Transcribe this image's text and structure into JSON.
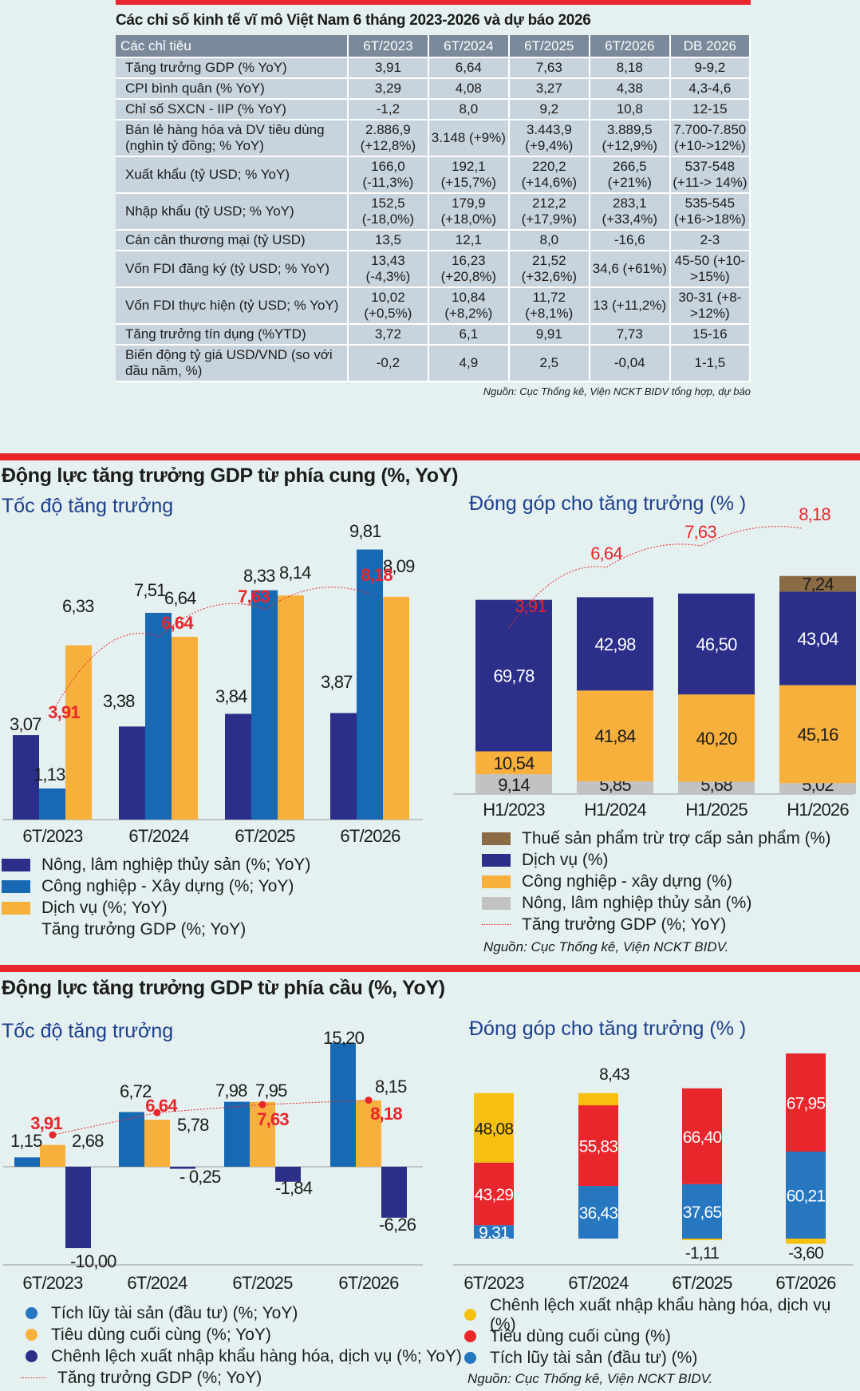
{
  "table": {
    "title": "Các chỉ số kinh tế vĩ mô Việt Nam 6 tháng 2023-2026 và dự báo 2026",
    "headers": [
      "Các chỉ tiêu",
      "6T/2023",
      "6T/2024",
      "6T/2025",
      "6T/2026",
      "DB 2026"
    ],
    "rows": [
      [
        "Tăng trưởng GDP (% YoY)",
        "3,91",
        "6,64",
        "7,63",
        "8,18",
        "9-9,2"
      ],
      [
        "CPI bình quân (% YoY)",
        "3,29",
        "4,08",
        "3,27",
        "4,38",
        "4,3-4,6"
      ],
      [
        "Chỉ số SXCN - IIP (% YoY)",
        "-1,2",
        "8,0",
        "9,2",
        "10,8",
        "12-15"
      ],
      [
        "Bán lẻ hàng hóa và DV tiêu dùng (nghìn tỷ đồng;  % YoY)",
        "2.886,9 (+12,8%)",
        "3.148 (+9%)",
        "3.443,9 (+9,4%)",
        "3.889,5 (+12,9%)",
        "7.700-7.850 (+10->12%)"
      ],
      [
        "Xuất khẩu (tỷ USD;  % YoY)",
        "166,0 (-11,3%)",
        "192,1 (+15,7%)",
        "220,2 (+14,6%)",
        "266,5 (+21%)",
        "537-548 (+11-> 14%)"
      ],
      [
        "Nhập khẩu (tỷ USD; % YoY)",
        "152,5 (-18,0%)",
        "179,9 (+18,0%)",
        "212,2 (+17,9%)",
        "283,1 (+33,4%)",
        "535-545 (+16->18%)"
      ],
      [
        "Cán cân thương mại (tỷ USD)",
        "13,5",
        "12,1",
        "8,0",
        "-16,6",
        "2-3"
      ],
      [
        "Vốn FDI đăng ký (tỷ USD; % YoY)",
        "13,43 (-4,3%)",
        "16,23 (+20,8%)",
        "21,52 (+32,6%)",
        "34,6 (+61%)",
        "45-50 (+10->15%)"
      ],
      [
        "Vốn FDI thực hiện (tỷ USD; % YoY)",
        "10,02 (+0,5%)",
        "10,84 (+8,2%)",
        "11,72 (+8,1%)",
        "13 (+11,2%)",
        "30-31 (+8->12%)"
      ],
      [
        "Tăng trưởng tín dụng (%YTD)",
        "3,72",
        "6,1",
        "9,91",
        "7,73",
        "15-16"
      ],
      [
        "Biến động tỷ giá USD/VND (so với đầu năm, %)",
        "-0,2",
        "4,9",
        "2,5",
        "-0,04",
        "1-1,5"
      ]
    ],
    "source": "Nguồn: Cục Thống kê, Viện NCKT BIDV tổng hợp, dự báo"
  },
  "supply": {
    "title": "Động lực tăng trưởng GDP từ phía cung (%, YoY)",
    "left_title": "Tốc độ tăng trưởng",
    "right_title": "Đóng góp cho tăng trưởng (% )",
    "left_legend": [
      "Nông, lâm nghiệp thủy sản (%; YoY)",
      "Công nghiệp - Xây dựng (%; YoY)",
      "Dịch vụ (%; YoY)",
      "Tăng trưởng GDP (%; YoY)"
    ],
    "right_legend": [
      "Thuế sản phẩm trừ trợ cấp sản phẩm (%)",
      "Dịch vụ (%)",
      "Công nghiệp - xây dựng (%)",
      "Nông, lâm nghiệp thủy sản (%)",
      "Tăng trưởng GDP (%; YoY)"
    ],
    "source": "Nguồn: Cục Thống kê, Viện NCKT BIDV."
  },
  "demand": {
    "title": "Động lực tăng trưởng GDP từ phía cầu (%, YoY)",
    "left_title": "Tốc độ tăng trưởng",
    "right_title": "Đóng góp cho tăng trưởng (% )",
    "left_legend": [
      "Tích lũy tài sản (đầu tư) (%; YoY)",
      "Tiêu dùng cuối cùng (%; YoY)",
      "Chênh lệch xuất nhập khẩu hàng hóa, dịch vụ (%; YoY)",
      "Tăng trưởng GDP (%; YoY)"
    ],
    "right_legend": [
      "Chênh lệch xuất nhập khẩu hàng hóa, dịch vụ  (%)",
      "Tiêu dùng cuối cùng (%)",
      "Tích lũy tài sản (đầu tư) (%)"
    ],
    "source": "Nguồn: Cục Thống kê, Viện NCKT BIDV."
  },
  "colors": {
    "navy": "#2b2f8a",
    "blue": "#1769b3",
    "orange": "#f7b03c",
    "gray": "#c2c2c2",
    "brown": "#8b6b45",
    "red": "#e8262c",
    "yellow": "#f8c00e",
    "dot_blue": "#2777c0"
  },
  "chart_data": [
    {
      "type": "bar",
      "title": "Tốc độ tăng trưởng",
      "categories": [
        "6T/2023",
        "6T/2024",
        "6T/2025",
        "6T/2026"
      ],
      "series": [
        {
          "name": "Nông, lâm nghiệp thủy sản (%; YoY)",
          "values": [
            3.07,
            3.38,
            3.84,
            3.87
          ],
          "labels": [
            "3,07",
            "3,38",
            "3,84",
            "3,87"
          ]
        },
        {
          "name": "Công nghiệp - Xây dựng (%; YoY)",
          "values": [
            1.13,
            7.51,
            8.33,
            9.81
          ],
          "labels": [
            "1,13",
            "7,51",
            "8,33",
            "9,81"
          ]
        },
        {
          "name": "Dịch vụ (%; YoY)",
          "values": [
            6.33,
            6.64,
            8.14,
            8.09
          ],
          "labels": [
            "6,33",
            "6,64",
            "8,14",
            "8,09"
          ]
        },
        {
          "name": "Tăng trưởng GDP (%; YoY)",
          "values": [
            3.91,
            6.64,
            7.63,
            8.18
          ],
          "labels": [
            "3,91",
            "6,64",
            "7,63",
            "8,18"
          ],
          "style": "dotted-line"
        }
      ]
    },
    {
      "type": "bar",
      "stacked": true,
      "title": "Đóng góp cho tăng trưởng (% )",
      "categories": [
        "H1/2023",
        "H1/2024",
        "H1/2025",
        "H1/2026"
      ],
      "series": [
        {
          "name": "Nông, lâm nghiệp thủy sản (%)",
          "values": [
            9.14,
            5.85,
            5.68,
            5.02
          ],
          "labels": [
            "9,14",
            "5,85",
            "5,68",
            "5,02"
          ]
        },
        {
          "name": "Công nghiệp - xây dựng (%)",
          "values": [
            10.54,
            41.84,
            40.2,
            45.16
          ],
          "labels": [
            "10,54",
            "41,84",
            "40,20",
            "45,16"
          ]
        },
        {
          "name": "Dịch vụ (%)",
          "values": [
            69.78,
            42.98,
            46.5,
            43.04
          ],
          "labels": [
            "69,78",
            "42,98",
            "46,50",
            "43,04"
          ]
        },
        {
          "name": "Thuế sản phẩm trừ trợ cấp sản phẩm (%)",
          "values": [
            0,
            0,
            0,
            7.24
          ],
          "labels": [
            "",
            "",
            "",
            "7,24"
          ]
        },
        {
          "name": "Tăng trưởng GDP (%; YoY)",
          "values": [
            3.91,
            6.64,
            7.63,
            8.18
          ],
          "labels": [
            "3,91",
            "6,64",
            "7,63",
            "8,18"
          ],
          "style": "dotted-line"
        }
      ]
    },
    {
      "type": "bar",
      "title": "Tốc độ tăng trưởng",
      "categories": [
        "6T/2023",
        "6T/2024",
        "6T/2025",
        "6T/2026"
      ],
      "series": [
        {
          "name": "Tích lũy tài sản (đầu tư) (%; YoY)",
          "values": [
            1.15,
            6.72,
            7.98,
            15.2
          ],
          "labels": [
            "1,15",
            "6,72",
            "7,98",
            "15,20"
          ]
        },
        {
          "name": "Tiêu dùng cuối cùng (%; YoY)",
          "values": [
            2.68,
            5.78,
            7.95,
            8.15
          ],
          "labels": [
            "2,68",
            "5,78",
            "7,95",
            "8,15"
          ]
        },
        {
          "name": "Chênh lệch xuất nhập khẩu hàng hóa, dịch vụ (%; YoY)",
          "values": [
            -10.0,
            -0.25,
            -1.84,
            -6.26
          ],
          "labels": [
            "-10,00",
            "- 0,25",
            "-1,84",
            "-6,26"
          ]
        },
        {
          "name": "Tăng trưởng GDP (%; YoY)",
          "values": [
            3.91,
            6.64,
            7.63,
            8.18
          ],
          "labels": [
            "3,91",
            "6,64",
            "7,63",
            "8,18"
          ],
          "style": "dotted-line"
        }
      ]
    },
    {
      "type": "bar",
      "stacked": true,
      "title": "Đóng góp cho tăng trưởng (% )",
      "categories": [
        "6T/2023",
        "6T/2024",
        "6T/2025",
        "6T/2026"
      ],
      "series": [
        {
          "name": "Tích lũy tài sản (đầu tư) (%)",
          "values": [
            9.31,
            36.43,
            37.65,
            60.21
          ],
          "labels": [
            "9,31",
            "36,43",
            "37,65",
            "60,21"
          ]
        },
        {
          "name": "Tiêu dùng cuối cùng (%)",
          "values": [
            43.29,
            55.83,
            66.4,
            67.95
          ],
          "labels": [
            "43,29",
            "55,83",
            "66,40",
            "67,95"
          ]
        },
        {
          "name": "Chênh lệch xuất nhập khẩu hàng hóa, dịch vụ  (%)",
          "values": [
            48.08,
            8.43,
            -1.11,
            -3.6
          ],
          "labels": [
            "48,08",
            "8,43",
            "-1,11",
            "-3,60"
          ]
        }
      ]
    }
  ]
}
